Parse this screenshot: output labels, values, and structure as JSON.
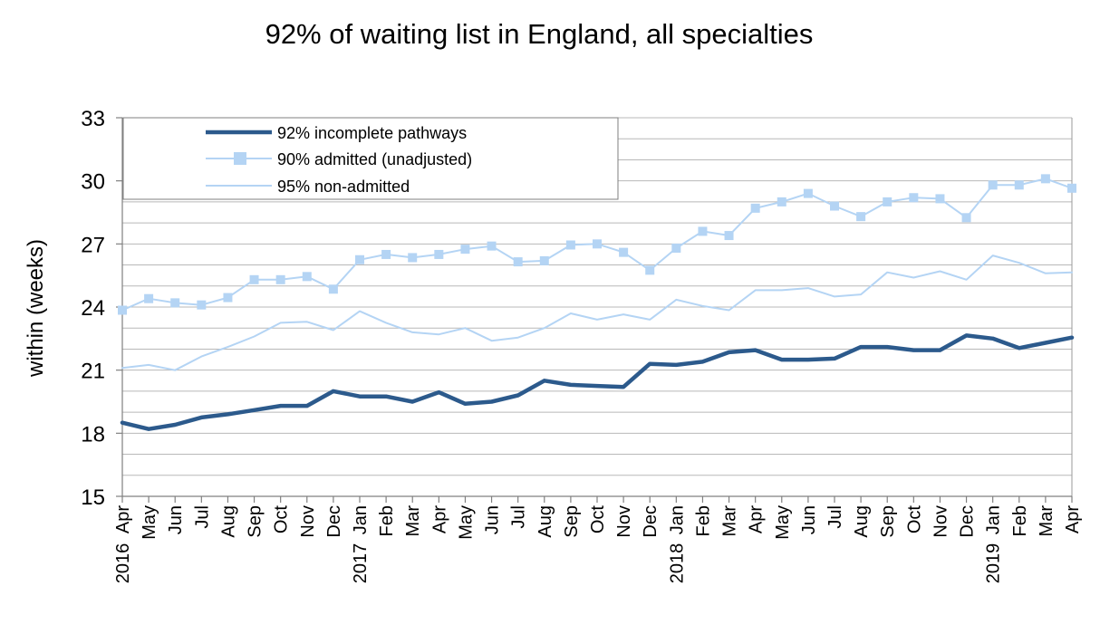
{
  "chart_data": {
    "type": "line",
    "title": "92% of waiting list in England, all specialties",
    "ylabel": "within  (weeks)",
    "xlabel": "",
    "ylim": [
      15,
      33
    ],
    "yticks": [
      15,
      18,
      21,
      24,
      27,
      30,
      33
    ],
    "grid": true,
    "legend_position": "top-left",
    "categories": [
      "Apr",
      "May",
      "Jun",
      "Jul",
      "Aug",
      "Sep",
      "Oct",
      "Nov",
      "Dec",
      "Jan",
      "Feb",
      "Mar",
      "Apr",
      "May",
      "Jun",
      "Jul",
      "Aug",
      "Sep",
      "Oct",
      "Nov",
      "Dec",
      "Jan",
      "Feb",
      "Mar",
      "Apr",
      "May",
      "Jun",
      "Jul",
      "Aug",
      "Sep",
      "Oct",
      "Nov",
      "Dec",
      "Jan",
      "Feb",
      "Mar",
      "Apr"
    ],
    "year_labels": [
      {
        "index": 0,
        "label": "2016"
      },
      {
        "index": 9,
        "label": "2017"
      },
      {
        "index": 21,
        "label": "2018"
      },
      {
        "index": 33,
        "label": "2019"
      }
    ],
    "series": [
      {
        "name": "92% incomplete pathways",
        "color": "#2c5a8c",
        "style": "thick-line",
        "values": [
          18.5,
          18.2,
          18.4,
          18.75,
          18.9,
          19.1,
          19.3,
          19.3,
          20.0,
          19.75,
          19.75,
          19.5,
          19.95,
          19.4,
          19.5,
          19.8,
          20.5,
          20.3,
          20.25,
          20.2,
          21.3,
          21.25,
          21.4,
          21.85,
          21.95,
          21.5,
          21.5,
          21.55,
          22.1,
          22.1,
          21.95,
          21.95,
          22.65,
          22.5,
          22.05,
          22.3,
          22.55
        ]
      },
      {
        "name": "90% admitted (unadjusted)",
        "color": "#b4d4f4",
        "style": "line-square-markers",
        "values": [
          23.85,
          24.4,
          24.2,
          24.1,
          24.45,
          25.3,
          25.3,
          25.45,
          24.85,
          26.25,
          26.5,
          26.35,
          26.5,
          26.75,
          26.9,
          26.15,
          26.2,
          26.95,
          27.0,
          26.6,
          25.75,
          26.8,
          27.6,
          27.4,
          28.7,
          29.0,
          29.4,
          28.8,
          28.3,
          29.0,
          29.2,
          29.15,
          28.25,
          29.8,
          29.8,
          30.1,
          29.65
        ]
      },
      {
        "name": "95% non-admitted",
        "color": "#b4d4f4",
        "style": "thin-line",
        "values": [
          21.1,
          21.25,
          21.0,
          21.65,
          22.1,
          22.6,
          23.25,
          23.3,
          22.9,
          23.8,
          23.25,
          22.8,
          22.7,
          23.0,
          22.4,
          22.55,
          23.0,
          23.7,
          23.4,
          23.65,
          23.4,
          24.35,
          24.05,
          23.85,
          24.8,
          24.8,
          24.9,
          24.5,
          24.6,
          25.65,
          25.4,
          25.7,
          25.3,
          26.45,
          26.1,
          25.6,
          25.65
        ]
      }
    ]
  }
}
